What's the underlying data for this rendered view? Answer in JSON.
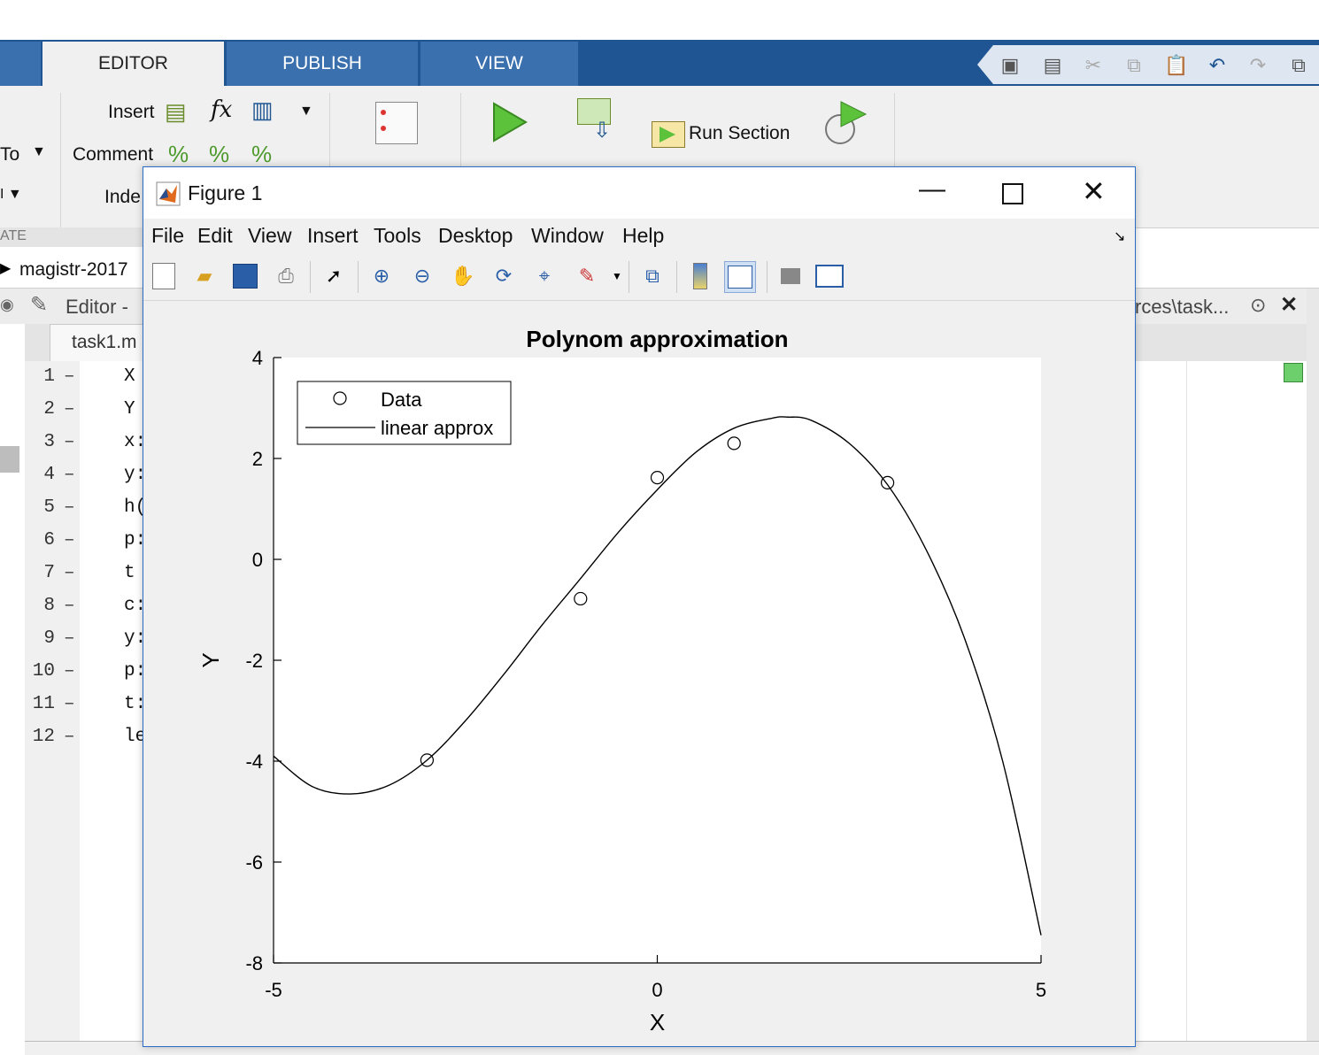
{
  "ribbon": {
    "tabs": [
      "EDITOR",
      "PUBLISH",
      "VIEW"
    ],
    "insert_label": "Insert",
    "comment_label": "Comment",
    "indent_label": "Inde",
    "goto_label": "To",
    "run_section_label": "Run Section",
    "group_label": "ATE",
    "fx_label": "fx"
  },
  "path": {
    "text": "magistr-2017"
  },
  "editor": {
    "title": "Editor -",
    "path_tail": "rces\\task...",
    "file_tab": "task1.m",
    "lines": [
      {
        "n": "1",
        "code": "X"
      },
      {
        "n": "2",
        "code": "Y"
      },
      {
        "n": "3",
        "code": "x:"
      },
      {
        "n": "4",
        "code": "y:"
      },
      {
        "n": "5",
        "code": "h("
      },
      {
        "n": "6",
        "code": "p:"
      },
      {
        "n": "7",
        "code": "t"
      },
      {
        "n": "8",
        "code": "c:"
      },
      {
        "n": "9",
        "code": "y:"
      },
      {
        "n": "10",
        "code": "p:"
      },
      {
        "n": "11",
        "code": "t:"
      },
      {
        "n": "12",
        "code": "le"
      }
    ]
  },
  "figure": {
    "title": "Figure 1",
    "menu": [
      "File",
      "Edit",
      "View",
      "Insert",
      "Tools",
      "Desktop",
      "Window",
      "Help"
    ],
    "toolbar_icons": [
      "new-figure-icon",
      "open-file-icon",
      "save-figure-icon",
      "print-icon",
      "edit-plot-arrow-icon",
      "zoom-in-icon",
      "zoom-out-icon",
      "pan-hand-icon",
      "rotate-3d-icon",
      "data-cursor-icon",
      "brush-icon",
      "link-plot-icon",
      "colorbar-icon",
      "legend-icon",
      "hide-plot-tools-icon",
      "show-plot-tools-icon"
    ]
  },
  "chart_data": {
    "type": "line",
    "title": "Polynom approximation",
    "xlabel": "X",
    "ylabel": "Y",
    "xlim": [
      -5,
      5
    ],
    "ylim": [
      -8,
      4
    ],
    "xticks": [
      "-5",
      "0",
      "5"
    ],
    "yticks": [
      "4",
      "2",
      "0",
      "-2",
      "-4",
      "-6",
      "-8"
    ],
    "legend": {
      "position": "top-left",
      "entries": [
        "Data",
        "linear approx"
      ]
    },
    "series": [
      {
        "name": "Data",
        "style": "markers-circle",
        "x": [
          -3,
          -1,
          0,
          1,
          3
        ],
        "y": [
          -3.98,
          -0.78,
          1.62,
          2.3,
          1.52
        ]
      },
      {
        "name": "linear approx",
        "style": "line",
        "x": [
          -5,
          -4.5,
          -4,
          -3.5,
          -3,
          -2.5,
          -2,
          -1.5,
          -1,
          -0.5,
          0,
          0.5,
          1,
          1.5,
          1.7,
          2,
          2.5,
          3,
          3.5,
          4,
          4.5,
          5
        ],
        "y": [
          -3.9,
          -4.5,
          -4.65,
          -4.48,
          -3.98,
          -3.2,
          -2.28,
          -1.3,
          -0.38,
          0.55,
          1.38,
          2.12,
          2.6,
          2.8,
          2.82,
          2.76,
          2.3,
          1.48,
          0.2,
          -1.55,
          -4.0,
          -7.45
        ]
      }
    ],
    "colors": {
      "line": "#000000",
      "marker": "#000000",
      "axes_bg": "#ffffff",
      "figure_bg": "#f0f0f0"
    }
  }
}
